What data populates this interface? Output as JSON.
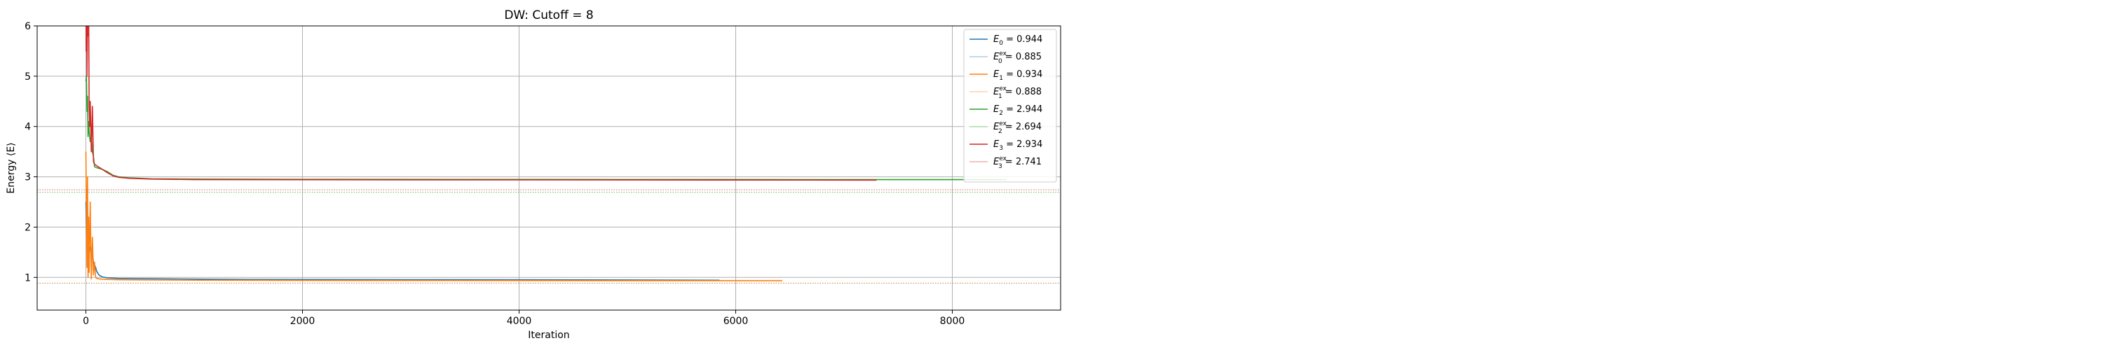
{
  "chart_data": {
    "type": "line",
    "title": "DW: Cutoff = 8",
    "xlabel": "Iteration",
    "ylabel": "Energy ⟨E⟩",
    "xlim": [
      -450,
      9000
    ],
    "ylim": [
      0.35,
      6.0
    ],
    "xticks": [
      0,
      2000,
      4000,
      6000,
      8000
    ],
    "yticks": [
      1,
      2,
      3,
      4,
      5,
      6
    ],
    "grid": true,
    "legend_position": "top-right",
    "series": [
      {
        "name": "E_0 = 0.944",
        "label_main": "E",
        "label_sub": "0",
        "label_sup": "",
        "label_value": " = 0.944",
        "color": "#1f77b4",
        "style": "solid",
        "x": [
          0,
          5,
          10,
          15,
          20,
          25,
          30,
          40,
          50,
          60,
          70,
          80,
          90,
          100,
          120,
          150,
          200,
          300,
          500,
          800,
          1500,
          3000,
          5000,
          5850
        ],
        "y": [
          2.5,
          2.0,
          1.7,
          2.1,
          1.6,
          1.8,
          1.55,
          1.6,
          1.45,
          1.5,
          1.3,
          1.25,
          1.2,
          1.12,
          1.05,
          1.01,
          0.99,
          0.98,
          0.975,
          0.97,
          0.96,
          0.955,
          0.95,
          0.944
        ]
      },
      {
        "name": "E_0^ex = 0.885",
        "label_main": "E",
        "label_sub": "0",
        "label_sup": "ex",
        "label_value": " = 0.885",
        "color": "#1f77b4",
        "style": "dotted",
        "y_const": 0.885
      },
      {
        "name": "E_1 = 0.934",
        "label_main": "E",
        "label_sub": "1",
        "label_sup": "",
        "label_value": " = 0.934",
        "color": "#ff7f0e",
        "style": "solid",
        "x": [
          0,
          5,
          10,
          15,
          20,
          25,
          30,
          40,
          50,
          60,
          70,
          80,
          90,
          100,
          120,
          150,
          200,
          300,
          500,
          1000,
          2000,
          4000,
          6430
        ],
        "y": [
          3.5,
          2.4,
          1.2,
          3.0,
          1.0,
          2.2,
          1.1,
          2.5,
          0.97,
          1.8,
          1.05,
          1.3,
          1.0,
          0.98,
          0.97,
          0.965,
          0.96,
          0.955,
          0.95,
          0.945,
          0.94,
          0.937,
          0.934
        ]
      },
      {
        "name": "E_1^ex = 0.888",
        "label_main": "E",
        "label_sub": "1",
        "label_sup": "ex",
        "label_value": " = 0.888",
        "color": "#ff7f0e",
        "style": "dotted",
        "y_const": 0.888
      },
      {
        "name": "E_2 = 2.944",
        "label_main": "E",
        "label_sub": "2",
        "label_sup": "",
        "label_value": " = 2.944",
        "color": "#2ca02c",
        "style": "solid",
        "x": [
          0,
          5,
          10,
          15,
          20,
          25,
          30,
          40,
          50,
          60,
          70,
          80,
          100,
          150,
          200,
          250,
          300,
          400,
          600,
          1000,
          2000,
          4000,
          6000,
          8500
        ],
        "y": [
          4.9,
          5.0,
          4.3,
          4.6,
          3.8,
          4.1,
          3.9,
          3.7,
          3.8,
          3.5,
          3.4,
          3.2,
          3.18,
          3.15,
          3.1,
          3.03,
          3.0,
          2.98,
          2.96,
          2.955,
          2.95,
          2.948,
          2.946,
          2.944
        ]
      },
      {
        "name": "E_2^ex = 2.694",
        "label_main": "E",
        "label_sub": "2",
        "label_sup": "ex",
        "label_value": " = 2.694",
        "color": "#2ca02c",
        "style": "dotted",
        "y_const": 2.694
      },
      {
        "name": "E_3 = 2.934",
        "label_main": "E",
        "label_sub": "3",
        "label_sup": "",
        "label_value": " = 2.934",
        "color": "#d62728",
        "style": "solid",
        "x": [
          0,
          3,
          6,
          10,
          15,
          20,
          25,
          30,
          35,
          40,
          50,
          60,
          70,
          80,
          100,
          150,
          200,
          250,
          300,
          400,
          600,
          1000,
          3000,
          5000,
          7300
        ],
        "y": [
          6.5,
          5.5,
          6.8,
          5.0,
          6.2,
          5.8,
          6.5,
          4.4,
          4.0,
          4.5,
          3.5,
          4.4,
          3.3,
          3.25,
          3.22,
          3.15,
          3.08,
          3.02,
          2.99,
          2.97,
          2.955,
          2.945,
          2.94,
          2.937,
          2.934
        ]
      },
      {
        "name": "E_3^ex = 2.741",
        "label_main": "E",
        "label_sub": "3",
        "label_sup": "ex",
        "label_value": " = 2.741",
        "color": "#d62728",
        "style": "dotted",
        "y_const": 2.741
      }
    ]
  }
}
